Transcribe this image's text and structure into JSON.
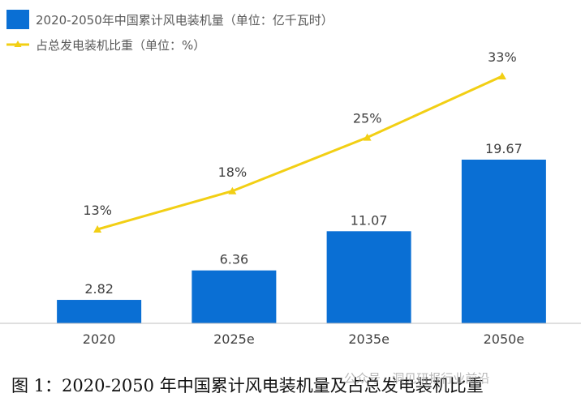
{
  "colors": {
    "bar": "#0a6fd4",
    "line": "#f2cf14",
    "axis": "#bfbfbf"
  },
  "caption": "图 1：2020-2050 年中国累计风电装机量及占总发电装机比重",
  "watermark": "公众号 · 洞见研报行业前沿",
  "chart_data": {
    "type": "bar",
    "categories": [
      "2020",
      "2025e",
      "2035e",
      "2050e"
    ],
    "series": [
      {
        "name": "2020-2050年中国累计风电装机量（单位：亿千瓦时）",
        "type": "bar",
        "values": [
          2.82,
          6.36,
          11.07,
          19.67
        ],
        "labels": [
          "2.82",
          "6.36",
          "11.07",
          "19.67"
        ]
      },
      {
        "name": "占总发电装机比重（单位：%）",
        "type": "line",
        "values": [
          13,
          18,
          25,
          33
        ],
        "labels": [
          "13%",
          "18%",
          "25%",
          "33%"
        ]
      }
    ],
    "legend_position": "top-left",
    "grid": false,
    "ylim_bar": [
      0,
      22
    ],
    "ylim_line": [
      0,
      40
    ]
  }
}
